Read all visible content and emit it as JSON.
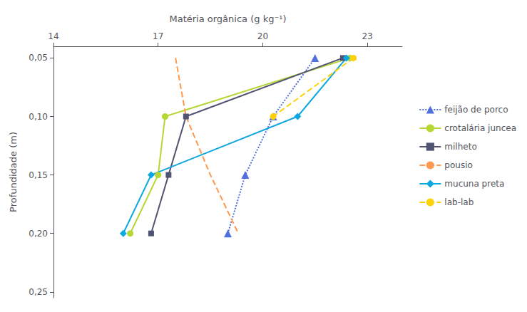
{
  "chart_data": {
    "type": "line",
    "x_label": "Matéria orgânica (g kg⁻¹)",
    "y_label": "Profundidade (m)",
    "xlim": [
      14,
      24
    ],
    "ylim": [
      0.255,
      0.04
    ],
    "xticks": [
      14,
      17,
      20,
      23
    ],
    "yticks": [
      {
        "value": 0.05,
        "label": "0,05"
      },
      {
        "value": 0.1,
        "label": "0,10"
      },
      {
        "value": 0.15,
        "label": "0,15"
      },
      {
        "value": 0.2,
        "label": "0,20"
      },
      {
        "value": 0.25,
        "label": "0,25"
      }
    ],
    "grid": false,
    "legend": "right",
    "series": [
      {
        "name": "feijão de porco",
        "x": [
          21.5,
          20.3,
          19.5,
          19.0
        ],
        "values": [
          0.05,
          0.1,
          0.15,
          0.2
        ],
        "marker": "triangle",
        "line_style": "dotted"
      },
      {
        "name": "crotalária juncea",
        "x": [
          22.5,
          17.2,
          17.0,
          16.2
        ],
        "values": [
          0.05,
          0.1,
          0.15,
          0.2
        ],
        "marker": "circle",
        "line_style": "solid"
      },
      {
        "name": "milheto",
        "x": [
          22.3,
          17.8,
          17.3,
          16.8
        ],
        "values": [
          0.05,
          0.1,
          0.15,
          0.2
        ],
        "marker": "square",
        "line_style": "solid"
      },
      {
        "name": "pousio",
        "x": [
          17.5,
          17.8,
          18.5,
          19.3
        ],
        "values": [
          0.05,
          0.1,
          0.15,
          0.2
        ],
        "marker": "none",
        "line_style": "dashed"
      },
      {
        "name": "mucuna preta",
        "x": [
          22.4,
          21.0,
          16.8,
          16.0
        ],
        "values": [
          0.05,
          0.1,
          0.15,
          0.2
        ],
        "marker": "diamond",
        "line_style": "solid"
      },
      {
        "name": "lab-lab",
        "x": [
          22.6,
          20.3
        ],
        "values": [
          0.05,
          0.1
        ],
        "marker": "circle",
        "line_style": "dashed"
      }
    ]
  }
}
